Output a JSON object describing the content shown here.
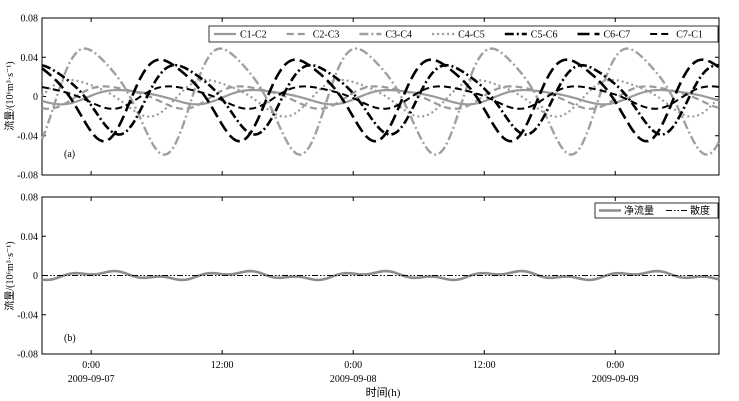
{
  "chart_data": [
    {
      "type": "line",
      "panel_label": "(a)",
      "ylabel": "流量/(10⁶m³·s⁻¹)",
      "ylim": [
        -0.08,
        0.08
      ],
      "yticks": [
        "0.08",
        "0.04",
        "0",
        "-0.04",
        "-0.08"
      ],
      "ytick_values": [
        0.08,
        0.04,
        0,
        -0.04,
        -0.08
      ],
      "xlim": [
        -4.5,
        57.5
      ],
      "grid": false,
      "legend_position": "top",
      "series": [
        {
          "name": "C1-C2",
          "color": "#9a9a9a",
          "dash": "solid",
          "width": 2.2,
          "amplitude": 0.007,
          "phase": 0.0
        },
        {
          "name": "C2-C3",
          "color": "#9a9a9a",
          "dash": "dash",
          "width": 2.2,
          "amplitude": 0.011,
          "phase": 0.6
        },
        {
          "name": "C3-C4",
          "color": "#a0a0a0",
          "dash": "dashdot",
          "width": 2.4,
          "amplitude": 0.052,
          "phase": 1.5
        },
        {
          "name": "C4-C5",
          "color": "#9a9a9a",
          "dash": "dot",
          "width": 2.2,
          "amplitude": 0.018,
          "phase": 2.2
        },
        {
          "name": "C5-C6",
          "color": "#000000",
          "dash": "dashdot",
          "width": 2.6,
          "amplitude": 0.034,
          "phase": 3.6
        },
        {
          "name": "C6-C7",
          "color": "#000000",
          "dash": "longdash",
          "width": 2.6,
          "amplitude": 0.04,
          "phase": 4.3
        },
        {
          "name": "C7-C1",
          "color": "#000000",
          "dash": "dash",
          "width": 2.0,
          "amplitude": 0.011,
          "phase": 3.9
        }
      ]
    },
    {
      "type": "line",
      "panel_label": "(b)",
      "ylabel": "流量/(10⁶m³·s⁻¹)",
      "ylim": [
        -0.08,
        0.08
      ],
      "yticks": [
        "0.08",
        "0.04",
        "0",
        "-0.04",
        "-0.08"
      ],
      "ytick_values": [
        0.08,
        0.04,
        0,
        -0.04,
        -0.08
      ],
      "xlim": [
        -4.5,
        57.5
      ],
      "grid": false,
      "legend_position": "top-right",
      "series": [
        {
          "name": "净流量",
          "color": "#8c8c8c",
          "dash": "solid",
          "width": 2.6,
          "amplitude": 0.004,
          "phase": 1.0
        },
        {
          "name": "散度",
          "color": "#000000",
          "dash": "dashdotdot",
          "width": 1.0,
          "amplitude": 0.0,
          "phase": 0.0
        }
      ],
      "xtick_values": [
        0,
        12,
        24,
        36,
        48
      ],
      "xticks": [
        "0:00",
        "12:00",
        "0:00",
        "12:00",
        "0:00"
      ],
      "date_labels": [
        {
          "x": 0,
          "text": "2009-09-07"
        },
        {
          "x": 24,
          "text": "2009-09-08"
        },
        {
          "x": 48,
          "text": "2009-09-09"
        }
      ],
      "xlabel": "时间(h)"
    }
  ]
}
